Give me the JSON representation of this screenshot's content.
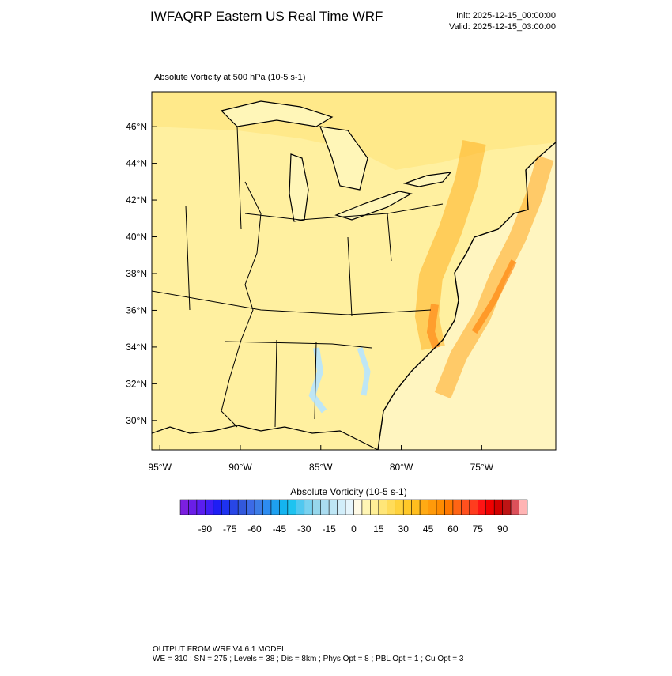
{
  "header": {
    "title": "IWFAQRP Eastern US Real Time WRF",
    "init": "Init: 2025-12-15_00:00:00",
    "valid": "Valid: 2025-12-15_03:00:00"
  },
  "map": {
    "field_title": "Absolute Vorticity at 500 hPa   (10-5 s-1)",
    "xlim": [
      -95.5,
      -70.4
    ],
    "ylim": [
      28.4,
      47.9
    ],
    "xticks": [
      {
        "value": -95,
        "label": "95°W"
      },
      {
        "value": -90,
        "label": "90°W"
      },
      {
        "value": -85,
        "label": "85°W"
      },
      {
        "value": -80,
        "label": "80°W"
      },
      {
        "value": -75,
        "label": "75°W"
      }
    ],
    "yticks": [
      {
        "value": 30,
        "label": "30°N"
      },
      {
        "value": 32,
        "label": "32°N"
      },
      {
        "value": 34,
        "label": "34°N"
      },
      {
        "value": 36,
        "label": "36°N"
      },
      {
        "value": 38,
        "label": "38°N"
      },
      {
        "value": 40,
        "label": "40°N"
      },
      {
        "value": 42,
        "label": "42°N"
      },
      {
        "value": 44,
        "label": "44°N"
      },
      {
        "value": 46,
        "label": "46°N"
      }
    ]
  },
  "colorbar": {
    "label": "Absolute Vorticity  (10-5 s-1)",
    "lim": [
      -105,
      105
    ],
    "ticks": [
      -90,
      -75,
      -60,
      -45,
      -30,
      -15,
      0,
      15,
      30,
      45,
      60,
      75,
      90
    ],
    "colors": [
      "#7b1fe0",
      "#6a1ee8",
      "#5a1ef0",
      "#3f1ef5",
      "#1e1ef5",
      "#1e32f0",
      "#2846e6",
      "#3258dc",
      "#3c6ae6",
      "#3c7ce6",
      "#2d8cf0",
      "#1ea0f0",
      "#14b4f0",
      "#1ec3f0",
      "#50c8f0",
      "#78d2f0",
      "#96d7ec",
      "#aadcf0",
      "#bee6f5",
      "#d2eefa",
      "#e6f5fc",
      "#fffae6",
      "#fff5b4",
      "#ffef96",
      "#ffe678",
      "#ffdc5a",
      "#ffd23c",
      "#ffc828",
      "#ffbe1e",
      "#ffaa14",
      "#ff9a0a",
      "#ff8c00",
      "#ff7800",
      "#ff6414",
      "#ff501e",
      "#ff3c1e",
      "#ff1414",
      "#f00000",
      "#d20000",
      "#be1414",
      "#dc505a",
      "#ffb4b4"
    ]
  },
  "footer": {
    "line1": "OUTPUT FROM WRF V4.6.1 MODEL",
    "line2": "WE = 310 ; SN = 275 ; Levels = 38 ; Dis = 8km ; Phys Opt = 8 ; PBL Opt = 1 ; Cu Opt = 3"
  }
}
